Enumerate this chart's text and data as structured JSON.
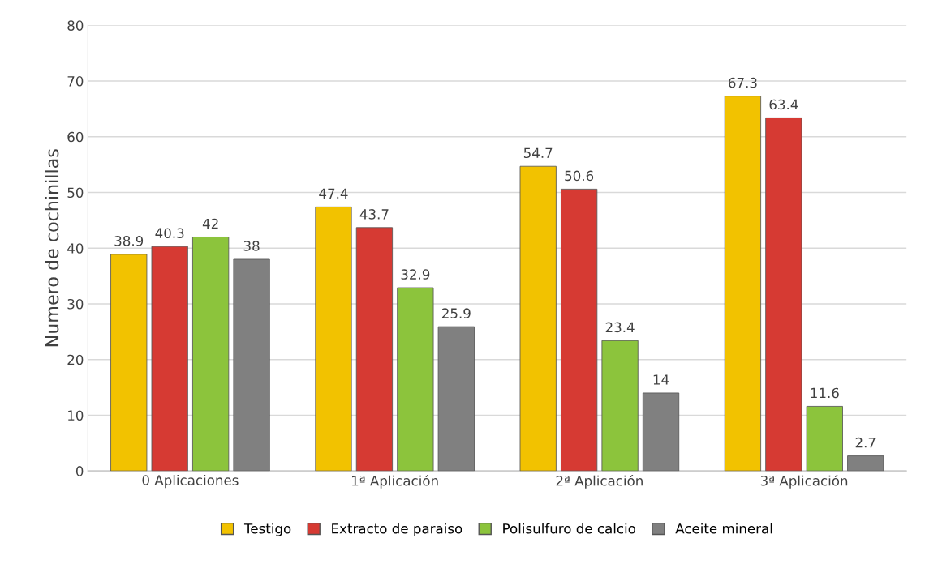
{
  "chart_data": {
    "type": "bar",
    "ylabel": "Numero de cochinillas",
    "categories": [
      "0 Aplicaciones",
      "1ª Aplicación",
      "2ª Aplicación",
      "3ª Aplicación"
    ],
    "series": [
      {
        "name": "Testigo",
        "color": "#f2c200",
        "values": [
          38.9,
          47.4,
          54.7,
          67.3
        ]
      },
      {
        "name": "Extracto de paraiso",
        "color": "#d63a33",
        "values": [
          40.3,
          43.7,
          50.6,
          63.4
        ]
      },
      {
        "name": "Polisulfuro de calcio",
        "color": "#8cc43c",
        "values": [
          42,
          32.9,
          23.4,
          11.6
        ]
      },
      {
        "name": "Aceite mineral",
        "color": "#808080",
        "values": [
          38,
          25.9,
          14,
          2.7
        ]
      }
    ],
    "ylim": [
      0,
      80
    ],
    "yticks": [
      0,
      10,
      20,
      30,
      40,
      50,
      60,
      70,
      80
    ],
    "grid": "y",
    "legend": "bottom",
    "data_labels": true
  }
}
